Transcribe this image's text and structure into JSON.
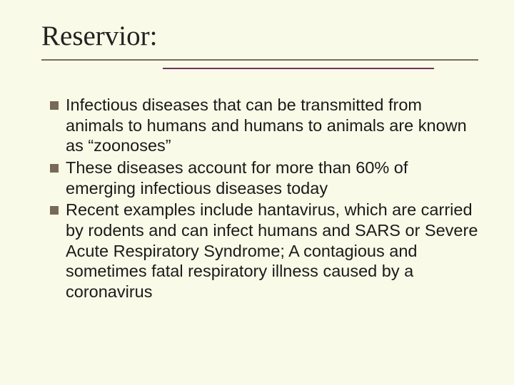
{
  "slide": {
    "title": "Reservior:",
    "background_color": "#fafae8",
    "title_font": "Times New Roman",
    "title_fontsize": 39,
    "title_color": "#222222",
    "underline_color": "#7a6a5a",
    "accent_line_color": "#6e335e",
    "bullet_color": "#786959",
    "body_font": "Arial",
    "body_fontsize": 23.5,
    "body_color": "#1a1a1a",
    "items": [
      "Infectious diseases that can be transmitted from animals to humans and humans to animals are known as “zoonoses”",
      "These diseases account for more than 60% of emerging infectious diseases today",
      "Recent examples include hantavirus, which are carried by rodents and can infect humans and SARS or Severe Acute Respiratory Syndrome; A contagious and sometimes fatal respiratory illness caused by a coronavirus"
    ]
  }
}
